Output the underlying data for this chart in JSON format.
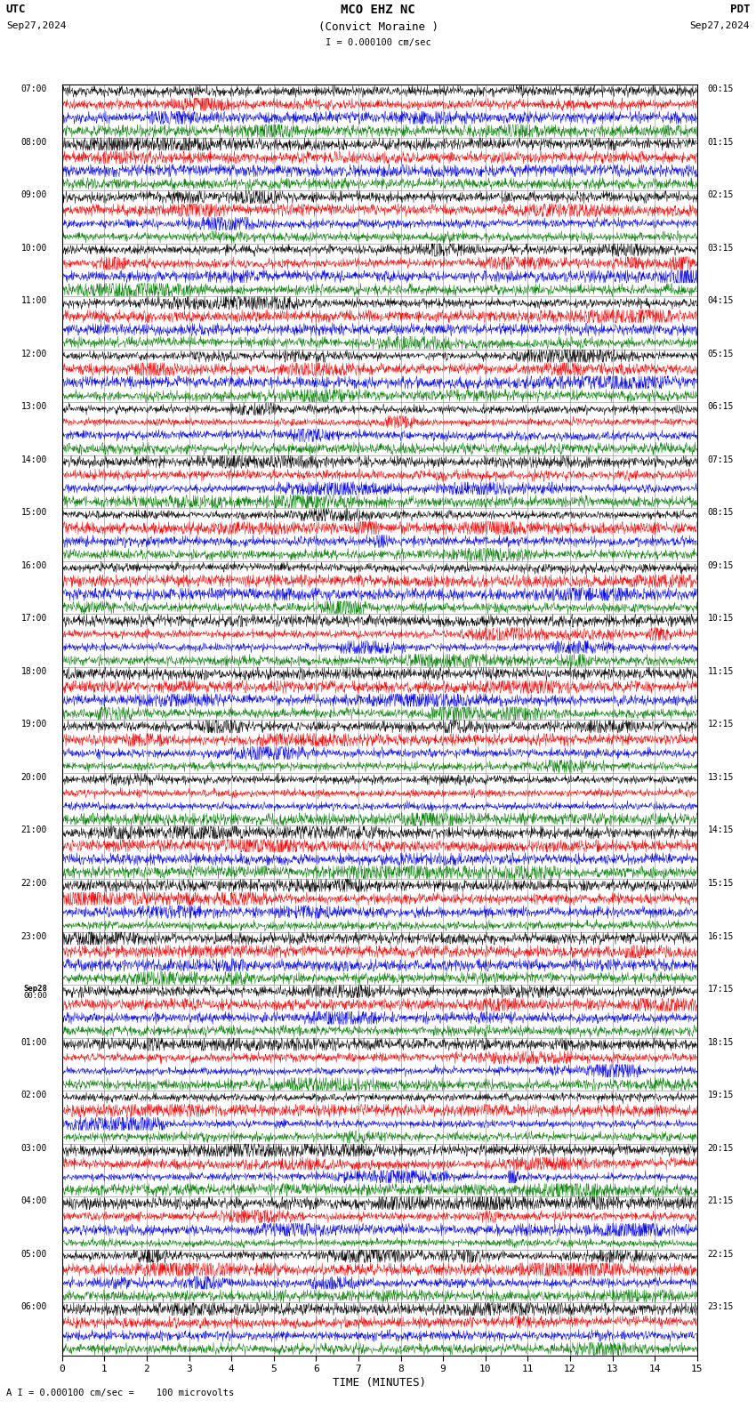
{
  "title_line1": "MCO EHZ NC",
  "title_line2": "(Convict Moraine )",
  "scale_text": "I = 0.000100 cm/sec",
  "utc_label": "UTC",
  "pdt_label": "PDT",
  "utc_date": "Sep27,2024",
  "pdt_date": "Sep27,2024",
  "xlabel": "TIME (MINUTES)",
  "footer_text": "A I = 0.000100 cm/sec =    100 microvolts",
  "bg_color": "#ffffff",
  "colors": [
    "black",
    "red",
    "blue",
    "green"
  ],
  "num_hour_blocks": 24,
  "traces_per_block": 4,
  "minutes_per_row": 15,
  "left_labels_utc": [
    "07:00",
    "08:00",
    "09:00",
    "10:00",
    "11:00",
    "12:00",
    "13:00",
    "14:00",
    "15:00",
    "16:00",
    "17:00",
    "18:00",
    "19:00",
    "20:00",
    "21:00",
    "22:00",
    "23:00",
    "Sep28",
    "01:00",
    "02:00",
    "03:00",
    "04:00",
    "05:00",
    "06:00"
  ],
  "left_labels_utc_sub": [
    "",
    "",
    "",
    "",
    "",
    "",
    "",
    "",
    "",
    "",
    "",
    "",
    "",
    "",
    "",
    "",
    "",
    "00:00",
    "",
    "",
    "",
    "",
    "",
    ""
  ],
  "right_labels_pdt": [
    "00:15",
    "01:15",
    "02:15",
    "03:15",
    "04:15",
    "05:15",
    "06:15",
    "07:15",
    "08:15",
    "09:15",
    "10:15",
    "11:15",
    "12:15",
    "13:15",
    "14:15",
    "15:15",
    "16:15",
    "17:15",
    "18:15",
    "19:15",
    "20:15",
    "21:15",
    "22:15",
    "23:15"
  ],
  "figsize": [
    8.5,
    15.84
  ],
  "dpi": 100
}
